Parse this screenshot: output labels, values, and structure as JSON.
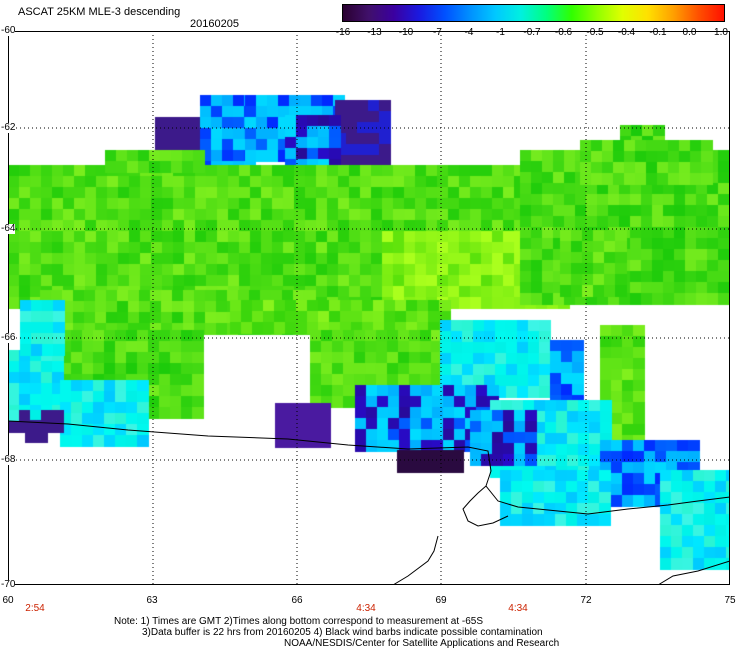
{
  "title": {
    "line1": "ASCAT 25KM MLE-3 descending",
    "line2": "20160205"
  },
  "colorbar": {
    "labels": [
      "-16",
      "-13",
      "-10",
      "-7",
      "-4",
      "-1",
      "-0.7",
      "-0.6",
      "-0.5",
      "-0.4",
      "-0.1",
      "0.0",
      "1.0"
    ],
    "colors": [
      "#2a0030",
      "#40106a",
      "#3b00a0",
      "#1a1ae0",
      "#0050ff",
      "#0090ff",
      "#00c8ff",
      "#00f0e0",
      "#00ff80",
      "#30ff00",
      "#90ff00",
      "#e0ff00",
      "#ffe000",
      "#ffa000",
      "#ff5000",
      "#ff1000"
    ]
  },
  "axes": {
    "lat_labels": [
      "-60",
      "-62",
      "-64",
      "-66",
      "-68",
      "-70"
    ],
    "lon_labels": [
      "60",
      "63",
      "66",
      "69",
      "72",
      "75"
    ],
    "time_labels": [
      "2:54",
      "4:34",
      "4:34"
    ]
  },
  "notes": {
    "line1": "Note: 1) Times are GMT 2)Times along bottom correspond to measurement at -65S",
    "line2": "3)Data buffer is 22 hrs from 20160205 4) Black wind barbs indicate possible contamination",
    "line3": "NOAA/NESDIS/Center for Satellite Applications and Research"
  }
}
